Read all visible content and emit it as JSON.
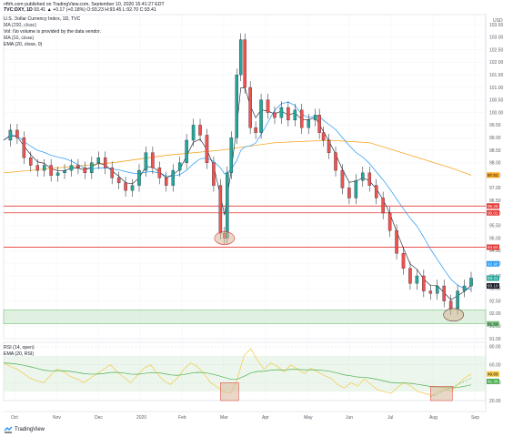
{
  "header": {
    "author_line": "nftrh.com published on TradingView.com, September 10, 2020 15:41:27 EDT",
    "symbol": "TVC:DXY, 1D",
    "ohlc": "93.41 ▲ +0.17 (+0.18%) O:93.23 H:93.45 L:92.70 C:93.41",
    "lines": [
      "U.S. Dollar Currency Index, 1D, TVC",
      "MA (200, close)",
      "Vol: No volume is provided by the data vendor.",
      "MA (50, close)",
      "EMA (20, close, 0)"
    ],
    "rsi_lines": [
      "RSI (14, open)",
      "EMA (20, RSI)"
    ]
  },
  "footer": {
    "brand": "TradingView"
  },
  "colors": {
    "up": "#26a69a",
    "down": "#ef5350",
    "candle_body": "#131722",
    "ma200": "#f5a623",
    "ma50": "#2196f3",
    "ema20": "#131722",
    "hline": "#e53935",
    "support": "#c8e6c9",
    "rsi": "#f6c945",
    "rsi_ema": "#4caf50"
  },
  "chart_data": {
    "type": "candlestick",
    "currency": "USD",
    "x_labels": [
      "Oct",
      "Nov",
      "Dec",
      "2020",
      "Feb",
      "Mar",
      "Apr",
      "May",
      "Jun",
      "Jul",
      "Aug",
      "Sep"
    ],
    "y_ticks": [
      91.0,
      91.5,
      92.0,
      92.5,
      93.0,
      93.5,
      94.0,
      94.5,
      95.0,
      95.5,
      96.0,
      96.5,
      97.0,
      97.5,
      98.0,
      98.5,
      99.0,
      99.5,
      100.0,
      100.5,
      101.0,
      101.5,
      102.0,
      102.5,
      103.0,
      103.5
    ],
    "ylim": [
      91.0,
      103.9
    ],
    "close_path": [
      [
        0,
        98.9
      ],
      [
        5,
        99.3
      ],
      [
        10,
        99.0
      ],
      [
        15,
        98.2
      ],
      [
        20,
        97.9
      ],
      [
        25,
        97.7
      ],
      [
        30,
        97.9
      ],
      [
        35,
        97.5
      ],
      [
        40,
        97.6
      ],
      [
        45,
        97.7
      ],
      [
        50,
        97.9
      ],
      [
        55,
        97.8
      ],
      [
        60,
        97.6
      ],
      [
        65,
        98.0
      ],
      [
        70,
        98.2
      ],
      [
        75,
        97.8
      ],
      [
        80,
        97.4
      ],
      [
        85,
        97.2
      ],
      [
        90,
        96.9
      ],
      [
        95,
        97.1
      ],
      [
        100,
        97.7
      ],
      [
        105,
        98.4
      ],
      [
        110,
        97.8
      ],
      [
        115,
        97.4
      ],
      [
        120,
        97.1
      ],
      [
        125,
        97.7
      ],
      [
        130,
        98.0
      ],
      [
        135,
        98.9
      ],
      [
        140,
        99.5
      ],
      [
        145,
        99.1
      ],
      [
        150,
        98.0
      ],
      [
        155,
        97.1
      ],
      [
        160,
        95.2
      ],
      [
        163,
        95.0
      ],
      [
        165,
        97.6
      ],
      [
        168,
        99.0
      ],
      [
        172,
        101.5
      ],
      [
        175,
        102.9
      ],
      [
        178,
        101.0
      ],
      [
        182,
        99.4
      ],
      [
        186,
        99.2
      ],
      [
        190,
        100.5
      ],
      [
        195,
        100.0
      ],
      [
        200,
        99.8
      ],
      [
        205,
        100.2
      ],
      [
        210,
        99.7
      ],
      [
        215,
        100.1
      ],
      [
        220,
        99.4
      ],
      [
        225,
        99.7
      ],
      [
        230,
        99.9
      ],
      [
        233,
        99.2
      ],
      [
        236,
        98.9
      ],
      [
        240,
        98.4
      ],
      [
        245,
        97.7
      ],
      [
        250,
        97.0
      ],
      [
        255,
        96.6
      ],
      [
        260,
        97.3
      ],
      [
        265,
        97.6
      ],
      [
        270,
        97.1
      ],
      [
        275,
        96.6
      ],
      [
        280,
        96.0
      ],
      [
        285,
        95.3
      ],
      [
        290,
        94.4
      ],
      [
        295,
        93.8
      ],
      [
        300,
        93.2
      ],
      [
        305,
        93.5
      ],
      [
        310,
        92.9
      ],
      [
        315,
        92.8
      ],
      [
        320,
        93.1
      ],
      [
        325,
        92.5
      ],
      [
        330,
        92.2
      ],
      [
        335,
        92.9
      ],
      [
        340,
        93.1
      ],
      [
        345,
        93.41
      ]
    ],
    "ma200": [
      [
        0,
        97.6
      ],
      [
        40,
        97.8
      ],
      [
        80,
        98.0
      ],
      [
        120,
        98.3
      ],
      [
        160,
        98.5
      ],
      [
        200,
        98.8
      ],
      [
        240,
        98.9
      ],
      [
        270,
        98.8
      ],
      [
        300,
        98.3
      ],
      [
        330,
        97.8
      ],
      [
        345,
        97.51
      ]
    ],
    "ma50_tag": "93.98",
    "ma200_tag": "97.51",
    "ema20_tag": "93.10",
    "price_tag": "93.41",
    "hlines": [
      {
        "value": 96.28,
        "tag": "96.28"
      },
      {
        "value": 96.01,
        "tag": "96.01"
      },
      {
        "value": 94.64,
        "tag": "94.64"
      }
    ],
    "support_zone": {
      "from": 91.59,
      "to": 92.15,
      "tag": "91.59"
    },
    "rsi": {
      "ticks": [
        20.0,
        40.0,
        60.0,
        80.0
      ],
      "ylim": [
        20,
        85
      ],
      "last": "49.68",
      "ema_last": "41.38",
      "values": [
        62,
        58,
        55,
        50,
        45,
        42,
        40,
        48,
        55,
        52,
        47,
        44,
        40,
        45,
        50,
        55,
        60,
        52,
        46,
        40,
        48,
        56,
        60,
        50,
        42,
        38,
        45,
        55,
        62,
        58,
        50,
        40,
        35,
        30,
        28,
        45,
        70,
        78,
        65,
        55,
        62,
        58,
        52,
        60,
        55,
        50,
        56,
        52,
        48,
        45,
        38,
        34,
        40,
        36,
        44,
        38,
        32,
        30,
        28,
        35,
        40,
        36,
        30,
        28,
        26,
        30,
        34,
        30,
        38,
        45,
        49.68
      ]
    }
  }
}
